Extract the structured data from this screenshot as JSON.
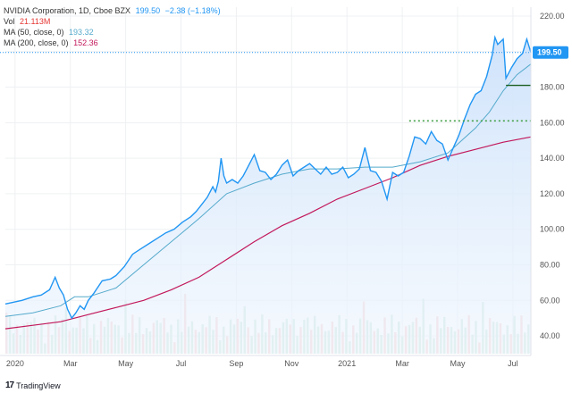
{
  "legend": {
    "symbol": "NVIDIA Corporation, 1D, Cboe BZX",
    "price": "199.50",
    "change": "−2.38 (−1.18%)",
    "vol_label": "Vol",
    "vol_value": "21.113M",
    "ma50_label": "MA (50, close, 0)",
    "ma50_value": "193.32",
    "ma200_label": "MA (200, close, 0)",
    "ma200_value": "152.36"
  },
  "brand": {
    "name": "TradingView"
  },
  "colors": {
    "price": "#2196f3",
    "area_top": "#cfe3fb",
    "area_bottom": "#eef5fd",
    "ma50": "#55aacc",
    "ma200": "#c2185b",
    "vol_up": "#cfe9df",
    "vol_down": "#f7d4d4",
    "level_solid": "#1b5e20",
    "level_dotted": "#43a047",
    "badge": "#2196f3",
    "grid": "#eef0f3",
    "axis_text": "#555555"
  },
  "chart_data": {
    "type": "line",
    "title": "NVIDIA Corporation, 1D, Cboe BZX",
    "x_ticks": [
      "2020",
      "Mar",
      "May",
      "Jul",
      "Sep",
      "Nov",
      "2021",
      "Mar",
      "May",
      "Jul"
    ],
    "y_ticks": [
      40,
      60,
      80,
      100,
      120,
      140,
      160,
      180,
      200,
      220
    ],
    "ylim": [
      30,
      225
    ],
    "x_range": [
      0,
      19
    ],
    "last_price": 199.5,
    "price": [
      [
        0.0,
        58
      ],
      [
        0.3,
        59
      ],
      [
        0.6,
        60
      ],
      [
        1.0,
        62
      ],
      [
        1.3,
        63
      ],
      [
        1.6,
        66
      ],
      [
        1.8,
        73
      ],
      [
        1.95,
        67
      ],
      [
        2.1,
        63
      ],
      [
        2.25,
        55
      ],
      [
        2.4,
        50
      ],
      [
        2.55,
        53
      ],
      [
        2.7,
        57
      ],
      [
        2.85,
        55
      ],
      [
        3.0,
        60
      ],
      [
        3.2,
        64
      ],
      [
        3.5,
        71
      ],
      [
        3.8,
        72
      ],
      [
        4.0,
        74
      ],
      [
        4.3,
        79
      ],
      [
        4.6,
        86
      ],
      [
        4.9,
        89
      ],
      [
        5.2,
        92
      ],
      [
        5.5,
        95
      ],
      [
        5.8,
        98
      ],
      [
        6.1,
        100
      ],
      [
        6.4,
        104
      ],
      [
        6.7,
        107
      ],
      [
        6.9,
        110
      ],
      [
        7.1,
        114
      ],
      [
        7.3,
        118
      ],
      [
        7.5,
        124
      ],
      [
        7.6,
        121
      ],
      [
        7.7,
        127
      ],
      [
        7.8,
        140
      ],
      [
        7.9,
        130
      ],
      [
        8.0,
        126
      ],
      [
        8.2,
        128
      ],
      [
        8.4,
        126
      ],
      [
        8.6,
        130
      ],
      [
        8.8,
        136
      ],
      [
        9.0,
        142
      ],
      [
        9.2,
        133
      ],
      [
        9.4,
        132
      ],
      [
        9.6,
        128
      ],
      [
        9.8,
        131
      ],
      [
        10.0,
        136
      ],
      [
        10.2,
        139
      ],
      [
        10.4,
        130
      ],
      [
        10.6,
        133
      ],
      [
        10.8,
        135
      ],
      [
        11.0,
        137
      ],
      [
        11.2,
        134
      ],
      [
        11.4,
        131
      ],
      [
        11.6,
        135
      ],
      [
        11.8,
        131
      ],
      [
        12.0,
        132
      ],
      [
        12.2,
        135
      ],
      [
        12.4,
        129
      ],
      [
        12.6,
        131
      ],
      [
        12.8,
        134
      ],
      [
        13.0,
        146
      ],
      [
        13.2,
        133
      ],
      [
        13.4,
        132
      ],
      [
        13.6,
        127
      ],
      [
        13.8,
        117
      ],
      [
        14.0,
        132
      ],
      [
        14.2,
        130
      ],
      [
        14.4,
        132
      ],
      [
        14.6,
        141
      ],
      [
        14.8,
        152
      ],
      [
        15.0,
        151
      ],
      [
        15.2,
        148
      ],
      [
        15.4,
        155
      ],
      [
        15.6,
        150
      ],
      [
        15.8,
        148
      ],
      [
        16.0,
        139
      ],
      [
        16.2,
        146
      ],
      [
        16.4,
        153
      ],
      [
        16.6,
        162
      ],
      [
        16.8,
        170
      ],
      [
        17.0,
        176
      ],
      [
        17.2,
        178
      ],
      [
        17.4,
        186
      ],
      [
        17.6,
        198
      ],
      [
        17.7,
        208
      ],
      [
        17.8,
        204
      ],
      [
        18.0,
        207
      ],
      [
        18.1,
        185
      ],
      [
        18.3,
        191
      ],
      [
        18.5,
        196
      ],
      [
        18.7,
        199
      ],
      [
        18.85,
        207
      ],
      [
        19.0,
        199.5
      ]
    ],
    "ma50": [
      [
        0,
        51
      ],
      [
        1,
        53
      ],
      [
        2,
        57
      ],
      [
        2.5,
        62
      ],
      [
        3,
        62
      ],
      [
        4,
        67
      ],
      [
        5,
        80
      ],
      [
        6,
        93
      ],
      [
        7,
        106
      ],
      [
        8,
        120
      ],
      [
        9,
        126
      ],
      [
        10,
        131
      ],
      [
        11,
        134
      ],
      [
        12,
        134
      ],
      [
        13,
        135
      ],
      [
        14,
        135
      ],
      [
        15,
        138
      ],
      [
        16,
        143
      ],
      [
        16.5,
        150
      ],
      [
        17,
        157
      ],
      [
        17.5,
        166
      ],
      [
        18,
        178
      ],
      [
        18.5,
        187
      ],
      [
        19,
        193
      ]
    ],
    "ma200": [
      [
        0,
        44
      ],
      [
        1,
        46
      ],
      [
        2,
        48
      ],
      [
        3,
        52
      ],
      [
        4,
        56
      ],
      [
        5,
        60
      ],
      [
        6,
        66
      ],
      [
        7,
        73
      ],
      [
        8,
        83
      ],
      [
        9,
        93
      ],
      [
        10,
        102
      ],
      [
        11,
        109
      ],
      [
        12,
        117
      ],
      [
        13,
        123
      ],
      [
        14,
        129
      ],
      [
        15,
        136
      ],
      [
        16,
        141
      ],
      [
        17,
        145
      ],
      [
        18,
        149
      ],
      [
        19,
        152
      ]
    ],
    "levels": [
      {
        "name": "resistance-dotted",
        "y": 161,
        "x_from": 14.6,
        "x_to": 19.3,
        "style": "dotted"
      },
      {
        "name": "support-solid",
        "y": 181,
        "x_from": 18.1,
        "x_to": 19.3,
        "style": "solid"
      }
    ]
  }
}
